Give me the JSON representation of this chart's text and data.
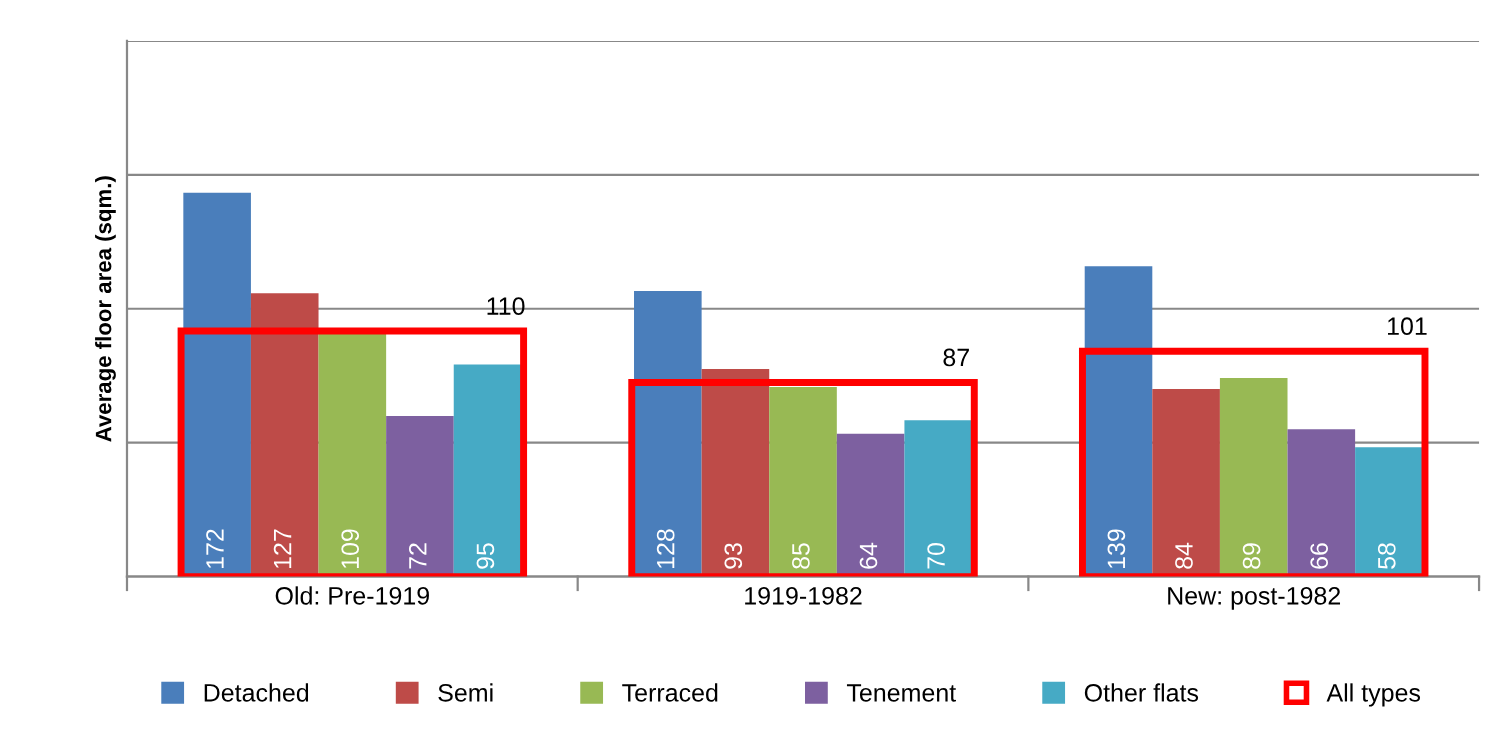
{
  "chart_data": {
    "type": "bar",
    "ylabel": "Average floor area (sqm.)",
    "categories": [
      "Old: Pre-1919",
      "1919-1982",
      "New: post-1982"
    ],
    "series": [
      {
        "name": "Detached",
        "color": "#4a7ebb",
        "values": [
          172,
          128,
          139
        ]
      },
      {
        "name": "Semi",
        "color": "#be4b48",
        "values": [
          127,
          93,
          84
        ]
      },
      {
        "name": "Terraced",
        "color": "#98b954",
        "values": [
          109,
          85,
          89
        ]
      },
      {
        "name": "Tenement",
        "color": "#7d60a0",
        "values": [
          72,
          64,
          66
        ]
      },
      {
        "name": "Other flats",
        "color": "#46aac5",
        "values": [
          95,
          70,
          58
        ]
      },
      {
        "name": "All types",
        "color": "#ff0000",
        "marker": "square",
        "values": [
          110,
          87,
          101
        ]
      }
    ],
    "ylim": [
      0,
      240
    ],
    "yticks": [
      0,
      60,
      120,
      180,
      240
    ],
    "tick_labels": "x",
    "grid": "y",
    "legend": "bottom",
    "data_labels": true
  }
}
